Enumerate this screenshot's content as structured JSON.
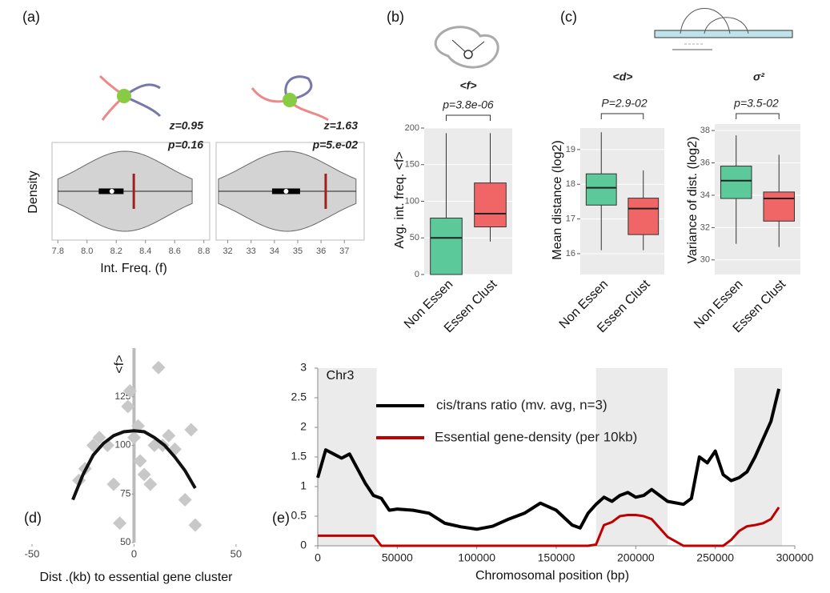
{
  "chart_data": [
    {
      "type": "violin",
      "panel_label": "(a)",
      "y_label": "Density",
      "x_label": "Int. Freq. (f)",
      "annotations": [
        "z=0.95",
        "p=0.16"
      ],
      "box": {
        "min": 7.8,
        "q1": 8.08,
        "median": 8.17,
        "q3": 8.25,
        "max": 8.72
      },
      "marker": 8.32,
      "color": "#d3d3d3",
      "marker_color": "#a31f1f",
      "xlim": [
        7.76,
        8.84
      ],
      "xticks": [
        7.8,
        {
          "value": 8,
          "label": "8.0"
        },
        8.2,
        8.4,
        8.6,
        8.8
      ]
    },
    {
      "type": "violin",
      "annotations": [
        "z=1.63",
        "p=5.e-02"
      ],
      "box": {
        "min": 31.6,
        "q1": 33.9,
        "median": 34.5,
        "q3": 35.1,
        "max": 37.5
      },
      "marker": 36.2,
      "color": "#d3d3d3",
      "marker_color": "#a31f1f",
      "xlim": [
        31.5,
        37.85
      ],
      "xticks": [
        32,
        33,
        34,
        35,
        36,
        37
      ]
    },
    {
      "type": "box",
      "panel_label": "(b)",
      "title": "<f>",
      "p_label": "p=3.8e-06",
      "y_label": "Avg. int. freq. <f>",
      "categories": [
        "Non Essen",
        "Essen Clust"
      ],
      "boxes": [
        {
          "min": 0,
          "q1": 0,
          "median": 50,
          "q3": 77,
          "max": 193,
          "color": "#5cc99a"
        },
        {
          "min": 45,
          "q1": 65,
          "median": 83,
          "q3": 125,
          "max": 193,
          "color": "#f06666"
        }
      ],
      "ylim": [
        0,
        200
      ],
      "yticks": [
        0,
        50,
        100,
        150,
        200
      ],
      "grid": true
    },
    {
      "type": "box",
      "panel_label": "(c)",
      "title": "<d>",
      "p_label": "P=2.9-02",
      "y_label": "Mean distance (log2)",
      "categories": [
        "Non Essen",
        "Essen Clust"
      ],
      "boxes": [
        {
          "min": 16.1,
          "q1": 17.4,
          "median": 17.9,
          "q3": 18.3,
          "max": 19.5,
          "color": "#5cc99a"
        },
        {
          "min": 16.1,
          "q1": 16.55,
          "median": 17.3,
          "q3": 17.6,
          "max": 18.4,
          "color": "#f06666"
        }
      ],
      "ylim": [
        15.4,
        19.62
      ],
      "yticks": [
        16,
        17,
        18,
        19
      ],
      "grid": true
    },
    {
      "type": "box",
      "title": "σ²",
      "p_label": "p=3.5-02",
      "y_label": "Variance of dist. (log2)",
      "categories": [
        "Non Essen",
        "Essen Clust"
      ],
      "boxes": [
        {
          "min": 31,
          "q1": 33.8,
          "median": 34.9,
          "q3": 35.8,
          "max": 37.7,
          "color": "#5cc99a"
        },
        {
          "min": 30.8,
          "q1": 32.4,
          "median": 33.8,
          "q3": 34.2,
          "max": 36.5,
          "color": "#f06666"
        }
      ],
      "ylim": [
        29.1,
        38.4
      ],
      "yticks": [
        30,
        32,
        34,
        36,
        38
      ],
      "grid": true
    },
    {
      "type": "scatter",
      "panel_label": "(d)",
      "y_label": "<f>",
      "x_label": "Dist .(kb) to essential gene cluster",
      "x": [
        -27,
        -24,
        -20,
        -17,
        -13,
        -10,
        -7,
        -3,
        -2,
        0,
        2,
        3,
        5,
        8,
        10,
        12,
        14,
        17,
        20,
        25,
        28,
        30
      ],
      "values": [
        82,
        88,
        100,
        104,
        100,
        80,
        60,
        120,
        128,
        104,
        110,
        92,
        85,
        80,
        100,
        140,
        100,
        105,
        98,
        72,
        108,
        59
      ],
      "color": "#c8c8c8",
      "fit": {
        "x": [
          -30,
          -25,
          -20,
          -15,
          -10,
          -5,
          0,
          5,
          10,
          15,
          20,
          25,
          30
        ],
        "values": [
          72,
          85,
          95,
          101,
          105,
          107,
          107.5,
          107,
          104,
          100,
          94,
          87,
          78
        ],
        "color": "#111111"
      },
      "xlim": [
        -50,
        52
      ],
      "ylim": [
        50,
        150
      ],
      "xticks": [
        -50,
        0,
        50
      ],
      "yticks": [
        50,
        75,
        100,
        125
      ]
    },
    {
      "type": "line",
      "panel_label": "(e)",
      "annotation": "Chr3",
      "x_label": "Chromosomal position (bp)",
      "x": [
        0,
        5000,
        10000,
        15000,
        20000,
        25000,
        30000,
        35000,
        40000,
        45000,
        50000,
        60000,
        70000,
        80000,
        90000,
        100000,
        110000,
        120000,
        130000,
        140000,
        150000,
        160000,
        165000,
        170000,
        175000,
        180000,
        185000,
        190000,
        195000,
        200000,
        205000,
        210000,
        215000,
        220000,
        230000,
        235000,
        240000,
        245000,
        250000,
        255000,
        260000,
        265000,
        270000,
        275000,
        280000,
        285000,
        290000
      ],
      "series": [
        {
          "name": "cis/trans ratio (mv. avg, n=3)",
          "color": "#000000",
          "values": [
            1.15,
            1.62,
            1.55,
            1.48,
            1.55,
            1.3,
            1.05,
            0.85,
            0.8,
            0.6,
            0.62,
            0.6,
            0.55,
            0.38,
            0.32,
            0.28,
            0.33,
            0.45,
            0.55,
            0.72,
            0.6,
            0.35,
            0.3,
            0.55,
            0.7,
            0.82,
            0.75,
            0.85,
            0.9,
            0.82,
            0.85,
            0.95,
            0.85,
            0.75,
            0.7,
            0.8,
            1.5,
            1.4,
            1.6,
            1.2,
            1.1,
            1.15,
            1.25,
            1.5,
            1.8,
            2.1,
            2.65
          ]
        },
        {
          "name": "Essential gene-density (per 10kb)",
          "color": "#c00000",
          "values": [
            0.17,
            0.17,
            0.17,
            0.17,
            0.17,
            0.17,
            0.17,
            0.17,
            0,
            0,
            0,
            0,
            0,
            0,
            0,
            0,
            0,
            0,
            0,
            0,
            0,
            0,
            0,
            0,
            0.02,
            0.35,
            0.4,
            0.5,
            0.52,
            0.52,
            0.5,
            0.45,
            0.3,
            0.15,
            0,
            0,
            0,
            0,
            0,
            0,
            0.1,
            0.25,
            0.33,
            0.35,
            0.38,
            0.45,
            0.65
          ]
        }
      ],
      "shaded": [
        [
          0,
          37000
        ],
        [
          175000,
          220000
        ],
        [
          262000,
          292000
        ]
      ],
      "xlim": [
        0,
        300000
      ],
      "ylim": [
        0,
        3
      ],
      "xticks": [
        0,
        50000,
        100000,
        150000,
        200000,
        250000,
        300000
      ],
      "yticks": [
        0,
        0.5,
        1,
        1.5,
        2,
        2.5,
        3
      ]
    }
  ]
}
